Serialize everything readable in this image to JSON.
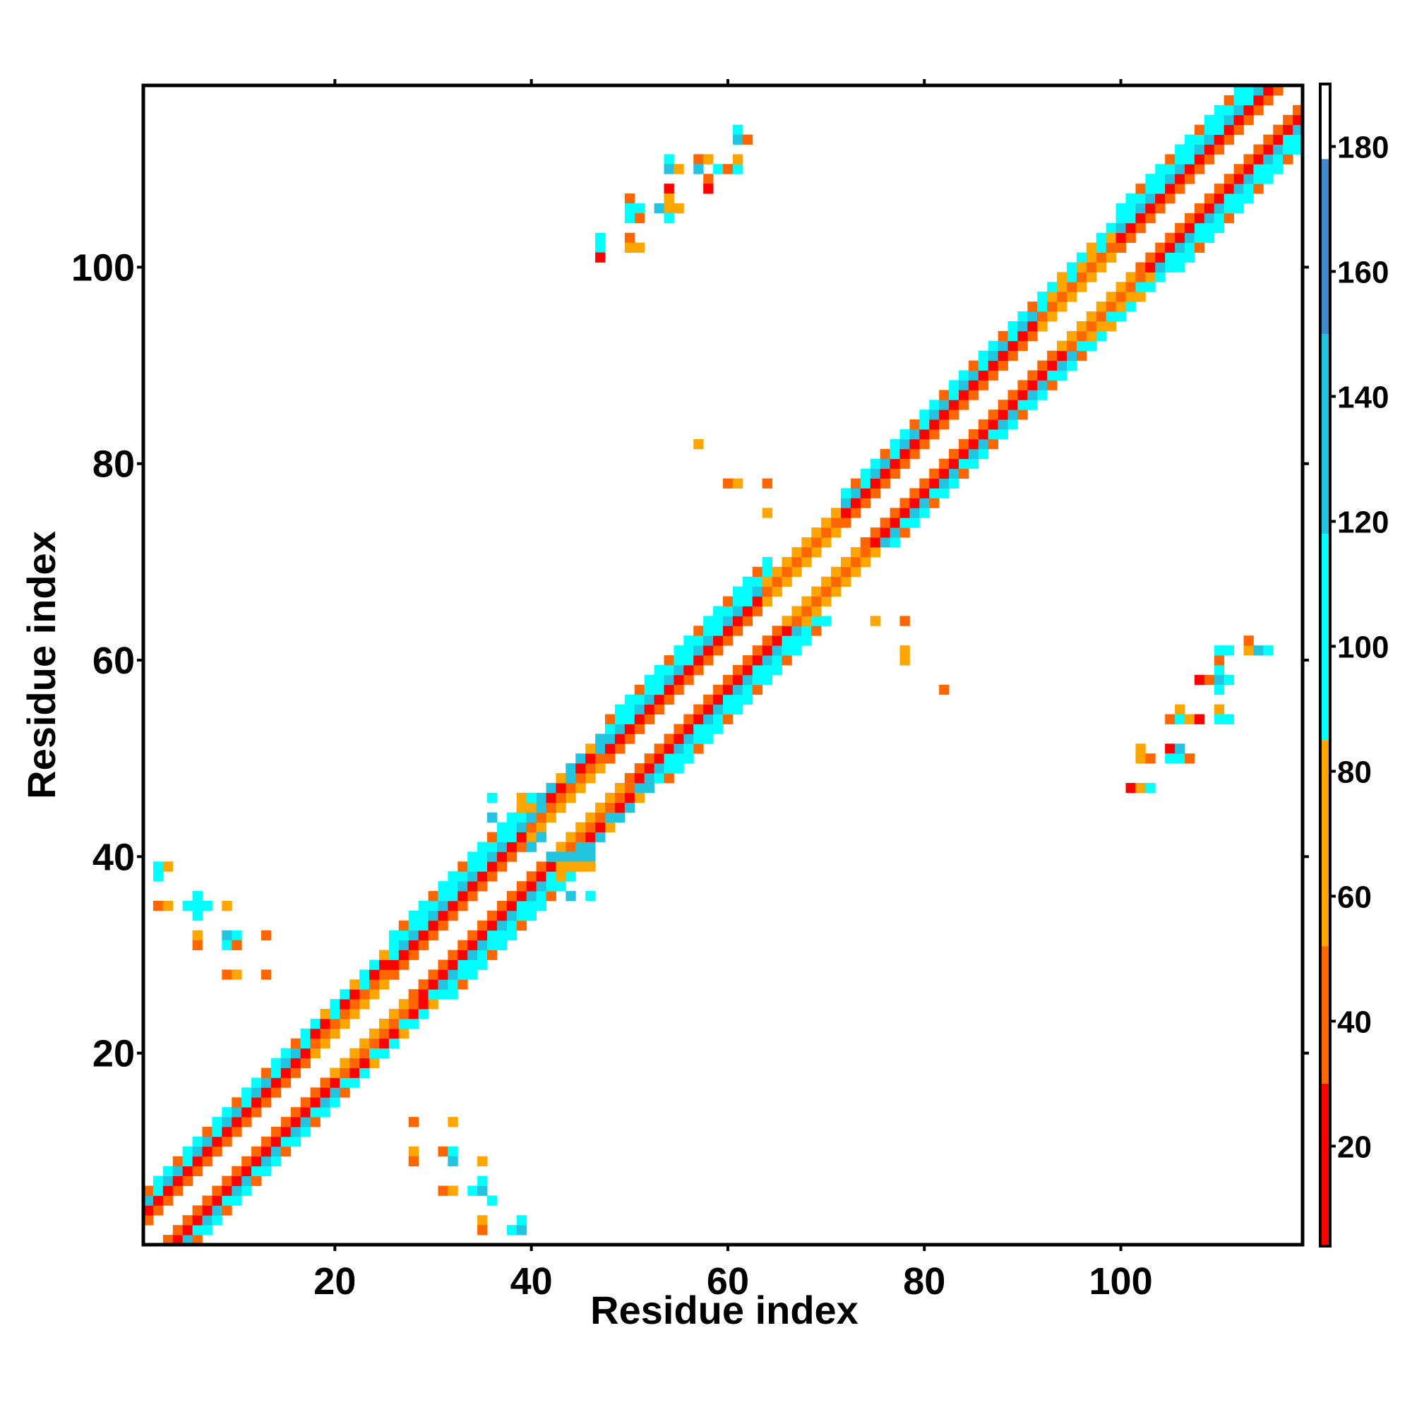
{
  "chart_data": {
    "type": "heatmap",
    "xlabel": "Residue index",
    "ylabel": "Residue index",
    "xlim": [
      1,
      118
    ],
    "ylim": [
      1,
      118
    ],
    "x_ticks": [
      20,
      40,
      60,
      80,
      100
    ],
    "x_tick_labels": [
      "20",
      "40",
      "60",
      "80",
      "100"
    ],
    "y_ticks": [
      20,
      40,
      60,
      80,
      100
    ],
    "y_tick_labels": [
      "20",
      "40",
      "60",
      "80",
      "100"
    ],
    "grid": false,
    "colorbar": {
      "range": [
        4,
        190
      ],
      "ticks": [
        20,
        40,
        60,
        80,
        100,
        120,
        140,
        160,
        180
      ],
      "tick_labels": [
        "20",
        "40",
        "60",
        "80",
        "100",
        "120",
        "140",
        "160",
        "180"
      ],
      "colors": [
        {
          "from": 4,
          "to": 30,
          "color": "#ff0000"
        },
        {
          "from": 30,
          "to": 52,
          "color": "#ff6600"
        },
        {
          "from": 52,
          "to": 85,
          "color": "#ffa500"
        },
        {
          "from": 85,
          "to": 118,
          "color": "#00ffff"
        },
        {
          "from": 118,
          "to": 150,
          "color": "#22c4e0"
        },
        {
          "from": 150,
          "to": 178,
          "color": "#4488cc"
        },
        {
          "from": 178,
          "to": 190,
          "color": "#ffffff"
        }
      ]
    },
    "diagonal_band": {
      "description_free": true,
      "segments": [
        {
          "from": 1,
          "to": 18,
          "offsets": [
            [
              2,
              "#ff6600"
            ],
            [
              3,
              "#ff0000"
            ],
            [
              4,
              "#22c4e0"
            ],
            [
              5,
              "#00ffff"
            ]
          ]
        },
        {
          "from": 18,
          "to": 26,
          "offsets": [
            [
              2,
              "#ffa500"
            ],
            [
              3,
              "#ff6600"
            ],
            [
              4,
              "#ff0000"
            ],
            [
              5,
              "#00ffff"
            ]
          ]
        },
        {
          "from": 26,
          "to": 40,
          "offsets": [
            [
              2,
              "#ff6600"
            ],
            [
              3,
              "#ff0000"
            ],
            [
              4,
              "#22c4e0"
            ],
            [
              5,
              "#00ffff"
            ],
            [
              6,
              "#00ffff"
            ]
          ]
        },
        {
          "from": 40,
          "to": 48,
          "offsets": [
            [
              2,
              "#ffa500"
            ],
            [
              3,
              "#ff6600"
            ],
            [
              4,
              "#ff0000"
            ],
            [
              5,
              "#22c4e0"
            ]
          ]
        },
        {
          "from": 48,
          "to": 64,
          "offsets": [
            [
              2,
              "#ff6600"
            ],
            [
              3,
              "#ff0000"
            ],
            [
              4,
              "#22c4e0"
            ],
            [
              5,
              "#00ffff"
            ],
            [
              6,
              "#00ffff"
            ]
          ]
        },
        {
          "from": 64,
          "to": 72,
          "offsets": [
            [
              2,
              "#ffa500"
            ],
            [
              3,
              "#ff6600"
            ],
            [
              4,
              "#ffa500"
            ]
          ]
        },
        {
          "from": 72,
          "to": 92,
          "offsets": [
            [
              2,
              "#ff6600"
            ],
            [
              3,
              "#ff0000"
            ],
            [
              4,
              "#22c4e0"
            ],
            [
              5,
              "#00ffff"
            ]
          ]
        },
        {
          "from": 92,
          "to": 100,
          "offsets": [
            [
              2,
              "#ffa500"
            ],
            [
              3,
              "#ff6600"
            ],
            [
              4,
              "#ffa500"
            ],
            [
              5,
              "#00ffff"
            ]
          ]
        },
        {
          "from": 100,
          "to": 118,
          "offsets": [
            [
              2,
              "#ff6600"
            ],
            [
              3,
              "#ff0000"
            ],
            [
              4,
              "#22c4e0"
            ],
            [
              5,
              "#00ffff"
            ],
            [
              6,
              "#00ffff"
            ]
          ]
        }
      ]
    },
    "cells": [
      [
        2,
        39,
        "#00ffff"
      ],
      [
        3,
        39,
        "#ffa500"
      ],
      [
        2,
        38,
        "#00ffff"
      ],
      [
        2,
        35,
        "#ff6600"
      ],
      [
        3,
        35,
        "#ffa500"
      ],
      [
        5,
        35,
        "#00ffff"
      ],
      [
        6,
        35,
        "#00ffff"
      ],
      [
        6,
        36,
        "#00ffff"
      ],
      [
        7,
        35,
        "#00ffff"
      ],
      [
        9,
        35,
        "#ffa500"
      ],
      [
        6,
        34,
        "#00ffff"
      ],
      [
        6,
        32,
        "#ffa500"
      ],
      [
        6,
        31,
        "#ff6600"
      ],
      [
        9,
        32,
        "#22c4e0"
      ],
      [
        10,
        32,
        "#00ffff"
      ],
      [
        9,
        31,
        "#00ffff"
      ],
      [
        10,
        31,
        "#ff6600"
      ],
      [
        13,
        32,
        "#ff6600"
      ],
      [
        9,
        28,
        "#ff6600"
      ],
      [
        10,
        28,
        "#ffa500"
      ],
      [
        13,
        28,
        "#ff6600"
      ],
      [
        28,
        13,
        "#ff6600"
      ],
      [
        32,
        13,
        "#ffa500"
      ],
      [
        28,
        10,
        "#ffa500"
      ],
      [
        28,
        9,
        "#ff6600"
      ],
      [
        31,
        10,
        "#ff6600"
      ],
      [
        32,
        10,
        "#00ffff"
      ],
      [
        32,
        9,
        "#22c4e0"
      ],
      [
        35,
        9,
        "#ffa500"
      ],
      [
        31,
        6,
        "#ff6600"
      ],
      [
        32,
        6,
        "#ffa500"
      ],
      [
        34,
        6,
        "#00ffff"
      ],
      [
        35,
        6,
        "#22c4e0"
      ],
      [
        35,
        7,
        "#00ffff"
      ],
      [
        36,
        5,
        "#00ffff"
      ],
      [
        35,
        3,
        "#ffa500"
      ],
      [
        35,
        2,
        "#ff6600"
      ],
      [
        38,
        2,
        "#00ffff"
      ],
      [
        39,
        2,
        "#22c4e0"
      ],
      [
        39,
        3,
        "#00ffff"
      ],
      [
        36,
        46,
        "#00ffff"
      ],
      [
        36,
        44,
        "#22c4e0"
      ],
      [
        39,
        46,
        "#ffa500"
      ],
      [
        40,
        46,
        "#00ffff"
      ],
      [
        39,
        45,
        "#ffa500"
      ],
      [
        40,
        44,
        "#22c4e0"
      ],
      [
        41,
        42,
        "#22c4e0"
      ],
      [
        40,
        41,
        "#22c4e0"
      ],
      [
        42,
        40,
        "#22c4e0"
      ],
      [
        43,
        40,
        "#22c4e0"
      ],
      [
        44,
        40,
        "#22c4e0"
      ],
      [
        45,
        40,
        "#22c4e0"
      ],
      [
        46,
        40,
        "#22c4e0"
      ],
      [
        43,
        39,
        "#ffa500"
      ],
      [
        44,
        39,
        "#ffa500"
      ],
      [
        45,
        39,
        "#ffa500"
      ],
      [
        46,
        39,
        "#ffa500"
      ],
      [
        43,
        38,
        "#ffa500"
      ],
      [
        44,
        36,
        "#22c4e0"
      ],
      [
        46,
        36,
        "#00ffff"
      ],
      [
        47,
        103,
        "#00ffff"
      ],
      [
        47,
        102,
        "#00ffff"
      ],
      [
        47,
        101,
        "#ff0000"
      ],
      [
        50,
        103,
        "#ff6600"
      ],
      [
        50,
        102,
        "#ffa500"
      ],
      [
        51,
        102,
        "#ffa500"
      ],
      [
        50,
        107,
        "#ff6600"
      ],
      [
        50,
        106,
        "#00ffff"
      ],
      [
        51,
        106,
        "#00ffff"
      ],
      [
        51,
        105,
        "#ff6600"
      ],
      [
        50,
        105,
        "#00ffff"
      ],
      [
        54,
        108,
        "#ff0000"
      ],
      [
        54,
        107,
        "#ffa500"
      ],
      [
        53,
        106,
        "#22c4e0"
      ],
      [
        54,
        106,
        "#ffa500"
      ],
      [
        55,
        106,
        "#ffa500"
      ],
      [
        54,
        105,
        "#00ffff"
      ],
      [
        54,
        111,
        "#00ffff"
      ],
      [
        54,
        110,
        "#22c4e0"
      ],
      [
        55,
        110,
        "#ffa500"
      ],
      [
        57,
        111,
        "#ff6600"
      ],
      [
        58,
        111,
        "#ffa500"
      ],
      [
        57,
        110,
        "#22c4e0"
      ],
      [
        58,
        109,
        "#ff6600"
      ],
      [
        58,
        108,
        "#ff0000"
      ],
      [
        59,
        110,
        "#00ffff"
      ],
      [
        60,
        110,
        "#ff6600"
      ],
      [
        61,
        110,
        "#00ffff"
      ],
      [
        61,
        111,
        "#ffa500"
      ],
      [
        61,
        114,
        "#00ffff"
      ],
      [
        61,
        113,
        "#22c4e0"
      ],
      [
        62,
        113,
        "#ff6600"
      ],
      [
        57,
        82,
        "#ffa500"
      ],
      [
        60,
        78,
        "#ff6600"
      ],
      [
        61,
        78,
        "#ffa500"
      ],
      [
        64,
        78,
        "#ff6600"
      ],
      [
        64,
        75,
        "#ffa500"
      ],
      [
        75,
        64,
        "#ffa500"
      ],
      [
        78,
        64,
        "#ff6600"
      ],
      [
        78,
        61,
        "#ffa500"
      ],
      [
        78,
        60,
        "#ffa500"
      ],
      [
        82,
        57,
        "#ff6600"
      ],
      [
        101,
        47,
        "#ff0000"
      ],
      [
        102,
        47,
        "#ffa500"
      ],
      [
        103,
        47,
        "#00ffff"
      ],
      [
        102,
        50,
        "#ffa500"
      ],
      [
        102,
        51,
        "#ffa500"
      ],
      [
        103,
        50,
        "#ff6600"
      ],
      [
        105,
        51,
        "#ff0000"
      ],
      [
        105,
        50,
        "#00ffff"
      ],
      [
        106,
        50,
        "#00ffff"
      ],
      [
        106,
        51,
        "#22c4e0"
      ],
      [
        107,
        50,
        "#ff6600"
      ],
      [
        105,
        54,
        "#ff6600"
      ],
      [
        106,
        54,
        "#00ffff"
      ],
      [
        106,
        55,
        "#ffa500"
      ],
      [
        107,
        54,
        "#ffa500"
      ],
      [
        108,
        54,
        "#ff0000"
      ],
      [
        108,
        58,
        "#ff0000"
      ],
      [
        109,
        58,
        "#ff6600"
      ],
      [
        110,
        58,
        "#22c4e0"
      ],
      [
        110,
        57,
        "#00ffff"
      ],
      [
        110,
        59,
        "#00ffff"
      ],
      [
        110,
        60,
        "#ff6600"
      ],
      [
        110,
        61,
        "#00ffff"
      ],
      [
        111,
        61,
        "#00ffff"
      ],
      [
        111,
        58,
        "#00ffff"
      ],
      [
        110,
        55,
        "#ffa500"
      ],
      [
        110,
        54,
        "#00ffff"
      ],
      [
        111,
        54,
        "#00ffff"
      ],
      [
        113,
        61,
        "#ffa500"
      ],
      [
        113,
        62,
        "#ff6600"
      ],
      [
        114,
        61,
        "#22c4e0"
      ],
      [
        115,
        61,
        "#00ffff"
      ]
    ]
  }
}
